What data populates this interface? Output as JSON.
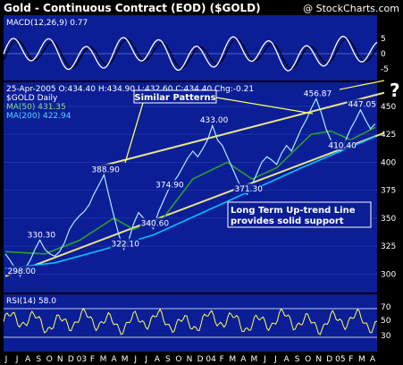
{
  "chart_data": {
    "type": "line",
    "title": "Gold - Continuous Contract (EOD) ($GOLD)",
    "credit": "@ StockCharts.com",
    "colors": {
      "background": "#000000",
      "panel": "#0b1e96",
      "price": "#aeeaff",
      "ma50": "#2f9d2f",
      "ma200": "#00c0ff",
      "trend": "#e8e28a",
      "macd": "#ffffff",
      "macd_signal": "#000000",
      "rsi": "#ffff55",
      "annotation_box": "#0b1e96"
    },
    "legend_header": "25-Apr-2005 O:434.40 H:434.90 L:432.60 C:434.40 Chg:-0.21",
    "legend": [
      {
        "text": "$GOLD Daily",
        "color": "#ffffff"
      },
      {
        "text": "MA(50) 431.35",
        "color": "#8fd88f"
      },
      {
        "text": "MA(200) 422.94",
        "color": "#55d5ff"
      }
    ],
    "macd_label": "MACD(12,26,9) 0.77",
    "rsi_label": "RSI(14) 58.0",
    "price_axis": {
      "ylim": [
        285,
        470
      ],
      "ticks": [
        300,
        325,
        350,
        375,
        400,
        425,
        450
      ]
    },
    "macd_axis": {
      "ticks": [
        5,
        0,
        -5
      ]
    },
    "rsi_axis": {
      "ticks": [
        70,
        50,
        30
      ]
    },
    "x_labels": [
      "J",
      "J",
      "A",
      "S",
      "O",
      "N",
      "D",
      "03",
      "F",
      "M",
      "A",
      "M",
      "J",
      "J",
      "A",
      "S",
      "O",
      "N",
      "D",
      "04",
      "F",
      "M",
      "A",
      "M",
      "J",
      "J",
      "A",
      "S",
      "O",
      "N",
      "D",
      "05",
      "F",
      "M",
      "A"
    ],
    "price_series": [
      [
        0,
        318
      ],
      [
        1,
        312
      ],
      [
        2,
        305
      ],
      [
        3,
        298
      ],
      [
        4,
        305
      ],
      [
        5,
        312
      ],
      [
        6,
        322
      ],
      [
        7,
        330.3
      ],
      [
        8,
        322
      ],
      [
        9,
        318
      ],
      [
        10,
        316
      ],
      [
        11,
        320
      ],
      [
        12,
        328
      ],
      [
        13,
        340
      ],
      [
        14,
        347
      ],
      [
        15,
        352
      ],
      [
        16,
        356
      ],
      [
        17,
        362
      ],
      [
        18,
        372
      ],
      [
        19,
        380
      ],
      [
        20,
        388.9
      ],
      [
        21,
        370
      ],
      [
        22,
        352
      ],
      [
        23,
        335
      ],
      [
        24,
        322.1
      ],
      [
        25,
        330
      ],
      [
        26,
        345
      ],
      [
        27,
        355
      ],
      [
        28,
        350
      ],
      [
        29,
        345
      ],
      [
        30,
        340.6
      ],
      [
        31,
        355
      ],
      [
        32,
        365
      ],
      [
        33,
        374.9
      ],
      [
        34,
        382
      ],
      [
        35,
        388
      ],
      [
        36,
        396
      ],
      [
        37,
        404
      ],
      [
        38,
        410
      ],
      [
        39,
        405
      ],
      [
        40,
        412
      ],
      [
        41,
        420
      ],
      [
        42,
        433
      ],
      [
        43,
        420
      ],
      [
        44,
        415
      ],
      [
        45,
        405
      ],
      [
        46,
        395
      ],
      [
        47,
        385
      ],
      [
        48,
        375
      ],
      [
        49,
        371.3
      ],
      [
        50,
        380
      ],
      [
        51,
        390
      ],
      [
        52,
        400
      ],
      [
        53,
        405
      ],
      [
        54,
        402
      ],
      [
        55,
        398
      ],
      [
        56,
        408
      ],
      [
        57,
        415
      ],
      [
        58,
        410
      ],
      [
        59,
        420
      ],
      [
        60,
        430
      ],
      [
        61,
        438
      ],
      [
        62,
        448
      ],
      [
        63,
        456.87
      ],
      [
        64,
        445
      ],
      [
        65,
        430
      ],
      [
        66,
        420
      ],
      [
        67,
        415
      ],
      [
        68,
        410.4
      ],
      [
        69,
        420
      ],
      [
        70,
        430
      ],
      [
        71,
        438
      ],
      [
        72,
        447.05
      ],
      [
        73,
        438
      ],
      [
        74,
        430
      ],
      [
        75,
        434.4
      ]
    ],
    "ma50_series": [
      [
        0,
        320
      ],
      [
        8,
        318
      ],
      [
        15,
        330
      ],
      [
        22,
        350
      ],
      [
        26,
        340
      ],
      [
        32,
        350
      ],
      [
        38,
        385
      ],
      [
        45,
        400
      ],
      [
        50,
        385
      ],
      [
        55,
        395
      ],
      [
        62,
        425
      ],
      [
        66,
        428
      ],
      [
        70,
        420
      ],
      [
        75,
        431.35
      ]
    ],
    "ma200_series": [
      [
        0,
        305
      ],
      [
        10,
        310
      ],
      [
        20,
        322
      ],
      [
        30,
        335
      ],
      [
        40,
        355
      ],
      [
        50,
        375
      ],
      [
        60,
        395
      ],
      [
        68,
        410
      ],
      [
        75,
        422.94
      ]
    ],
    "trendlines": [
      {
        "name": "support",
        "points": [
          [
            0,
            298
          ],
          [
            75,
            423
          ]
        ]
      },
      {
        "name": "channel-top",
        "points": [
          [
            18,
            395
          ],
          [
            75,
            460
          ]
        ]
      }
    ],
    "price_callouts": [
      {
        "text": "330.30",
        "x": 7,
        "y": 330.3
      },
      {
        "text": "298.00",
        "x": 3,
        "y": 298
      },
      {
        "text": "388.90",
        "x": 20,
        "y": 388.9
      },
      {
        "text": "322.10",
        "x": 24,
        "y": 322.1
      },
      {
        "text": "374.90",
        "x": 33,
        "y": 374.9
      },
      {
        "text": "340.60",
        "x": 30,
        "y": 340.6
      },
      {
        "text": "433.00",
        "x": 42,
        "y": 433
      },
      {
        "text": "371.30",
        "x": 49,
        "y": 371.3
      },
      {
        "text": "456.87",
        "x": 63,
        "y": 456.87
      },
      {
        "text": "447.05",
        "x": 72,
        "y": 447.05
      },
      {
        "text": "410.40",
        "x": 68,
        "y": 410.4
      }
    ],
    "annotations": {
      "patterns": "Similar Patterns",
      "support_line1": "Long Term Up-trend Line",
      "support_line2": "provides solid support",
      "question": "?"
    }
  }
}
